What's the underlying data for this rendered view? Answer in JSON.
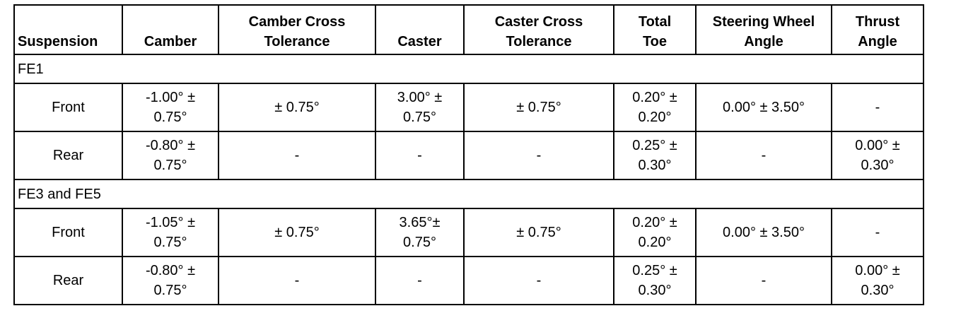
{
  "table": {
    "headers": [
      "Suspension",
      "Camber",
      "Camber Cross Tolerance",
      "Caster",
      "Caster Cross Tolerance",
      "Total Toe",
      "Steering Wheel Angle",
      "Thrust Angle"
    ],
    "sections": [
      {
        "title": "FE1",
        "rows": [
          [
            "Front",
            "-1.00° ± 0.75°",
            "± 0.75°",
            "3.00° ± 0.75°",
            "± 0.75°",
            "0.20° ± 0.20°",
            "0.00° ± 3.50°",
            "-"
          ],
          [
            "Rear",
            "-0.80° ± 0.75°",
            "-",
            "-",
            "-",
            "0.25° ± 0.30°",
            "-",
            "0.00° ± 0.30°"
          ]
        ]
      },
      {
        "title": "FE3 and FE5",
        "rows": [
          [
            "Front",
            "-1.05° ± 0.75°",
            "± 0.75°",
            "3.65°± 0.75°",
            "± 0.75°",
            "0.20° ± 0.20°",
            "0.00° ± 3.50°",
            "-"
          ],
          [
            "Rear",
            "-0.80° ± 0.75°",
            "-",
            "-",
            "-",
            "0.25° ± 0.30°",
            "-",
            "0.00° ± 0.30°"
          ]
        ]
      }
    ]
  }
}
